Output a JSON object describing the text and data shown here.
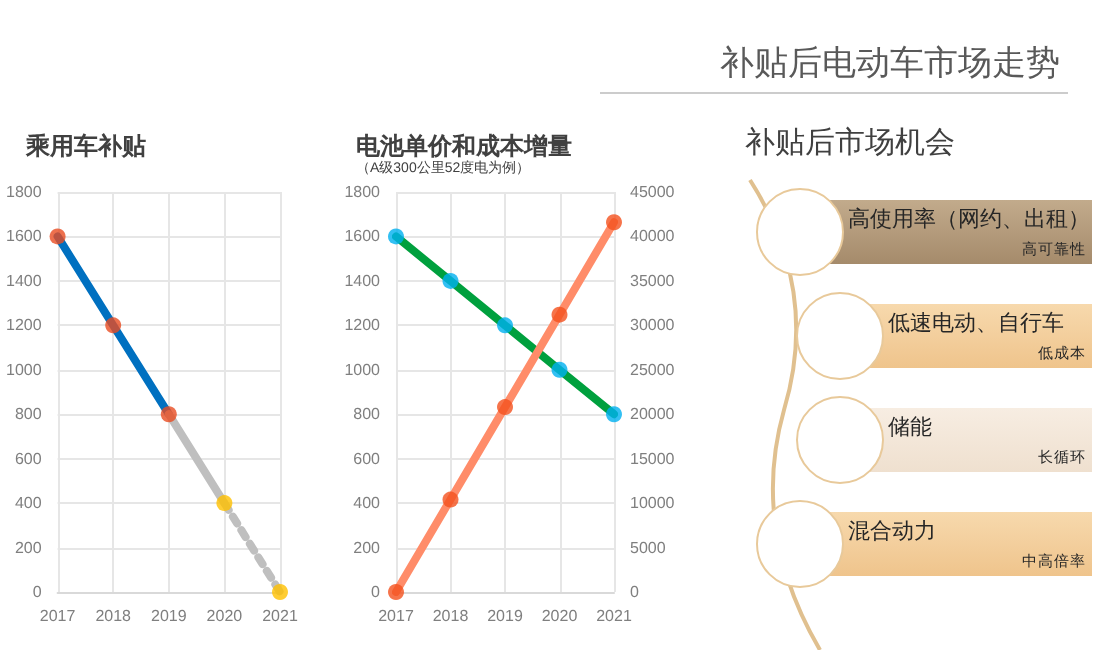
{
  "chart_data": [
    {
      "type": "line",
      "title": "乘用车补贴",
      "categories": [
        "2017",
        "2018",
        "2019",
        "2020",
        "2021"
      ],
      "series": [
        {
          "color": "#0070c0",
          "values": [
            1600,
            1200,
            800,
            null,
            null
          ],
          "marker": "none"
        },
        {
          "color": "#bfbfbf",
          "values": [
            null,
            null,
            800,
            400,
            null
          ],
          "marker": "none"
        },
        {
          "color": "#bfbfbf",
          "values": [
            null,
            null,
            null,
            400,
            0
          ],
          "marker": "none",
          "line_style": "dotted"
        },
        {
          "type": "scatter",
          "color": "#e84c22",
          "values": [
            1600,
            1200,
            800,
            null,
            null
          ]
        },
        {
          "type": "scatter",
          "color": "#ffc000",
          "values": [
            null,
            null,
            null,
            400,
            0
          ]
        }
      ],
      "ylim": [
        0,
        1800
      ],
      "yticks": [
        0,
        200,
        400,
        600,
        800,
        1000,
        1200,
        1400,
        1600,
        1800
      ],
      "grid": true,
      "marker": "circle",
      "line_style": "solid"
    },
    {
      "type": "line",
      "title": "电池单价和成本增量",
      "subtitle": "（A级300公里52度电为例）",
      "categories": [
        "2017",
        "2018",
        "2019",
        "2020",
        "2021"
      ],
      "series": [
        {
          "color": "#00a03e",
          "values": [
            1600,
            1400,
            1200,
            1000,
            800
          ],
          "marker": "none"
        },
        {
          "color": "#ff8c69",
          "values": [
            0,
            10400,
            20800,
            31200,
            41600
          ],
          "marker": "none",
          "axis": "y2"
        },
        {
          "type": "scatter",
          "color": "#00b0f0",
          "values": [
            1600,
            1400,
            1200,
            1000,
            800
          ]
        },
        {
          "type": "scatter",
          "color": "#f4511e",
          "values": [
            0,
            10400,
            20800,
            31200,
            41600
          ],
          "axis": "y2"
        }
      ],
      "ylim": [
        0,
        1800
      ],
      "yticks": [
        0,
        200,
        400,
        600,
        800,
        1000,
        1200,
        1400,
        1600,
        1800
      ],
      "y2lim": [
        0,
        45000
      ],
      "y2ticks": [
        0,
        5000,
        10000,
        15000,
        20000,
        25000,
        30000,
        35000,
        40000,
        45000
      ],
      "grid": true,
      "marker": "circle",
      "line_style": "solid"
    },
    {
      "type": "other",
      "title": "补贴后市场机会",
      "annotations": [
        "补贴后电动车市场走势",
        "高使用率（网约、出租）",
        "高可靠性",
        "低速电动、自行车",
        "低成本",
        "储能",
        "长循环",
        "混合动力",
        "中高倍率"
      ]
    }
  ]
}
